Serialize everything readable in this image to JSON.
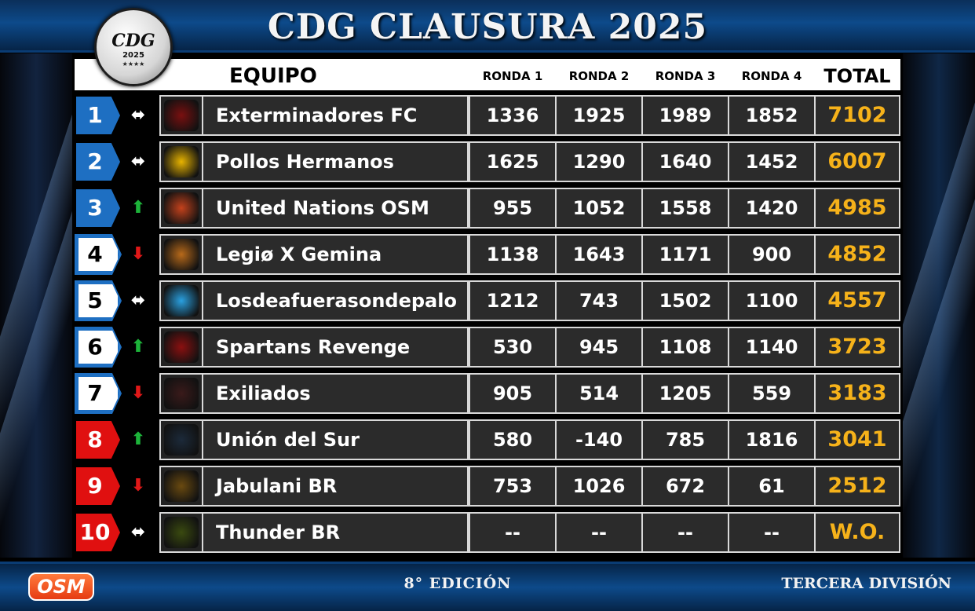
{
  "header": {
    "title": "CDG CLAUSURA 2025",
    "logo_text": "CDG",
    "logo_year": "2025",
    "logo_stars": "★★★★"
  },
  "columns": {
    "team": "EQUIPO",
    "r1": "RONDA 1",
    "r2": "RONDA 2",
    "r3": "RONDA 3",
    "r4": "RONDA 4",
    "total": "TOTAL"
  },
  "rows": [
    {
      "pos": "1",
      "trend": "same",
      "team": "Exterminadores FC",
      "r1": "1336",
      "r2": "1925",
      "r3": "1989",
      "r4": "1852",
      "total": "7102"
    },
    {
      "pos": "2",
      "trend": "same",
      "team": "Pollos Hermanos",
      "r1": "1625",
      "r2": "1290",
      "r3": "1640",
      "r4": "1452",
      "total": "6007"
    },
    {
      "pos": "3",
      "trend": "up",
      "team": "United Nations OSM",
      "r1": "955",
      "r2": "1052",
      "r3": "1558",
      "r4": "1420",
      "total": "4985"
    },
    {
      "pos": "4",
      "trend": "down",
      "team": "Legiø X Gemina",
      "r1": "1138",
      "r2": "1643",
      "r3": "1171",
      "r4": "900",
      "total": "4852"
    },
    {
      "pos": "5",
      "trend": "same",
      "team": "Losdeafuerasondepalo",
      "r1": "1212",
      "r2": "743",
      "r3": "1502",
      "r4": "1100",
      "total": "4557"
    },
    {
      "pos": "6",
      "trend": "up",
      "team": "Spartans Revenge",
      "r1": "530",
      "r2": "945",
      "r3": "1108",
      "r4": "1140",
      "total": "3723"
    },
    {
      "pos": "7",
      "trend": "down",
      "team": "Exiliados",
      "r1": "905",
      "r2": "514",
      "r3": "1205",
      "r4": "559",
      "total": "3183"
    },
    {
      "pos": "8",
      "trend": "up",
      "team": "Unión del Sur",
      "r1": "580",
      "r2": "-140",
      "r3": "785",
      "r4": "1816",
      "total": "3041"
    },
    {
      "pos": "9",
      "trend": "down",
      "team": "Jabulani BR",
      "r1": "753",
      "r2": "1026",
      "r3": "672",
      "r4": "61",
      "total": "2512"
    },
    {
      "pos": "10",
      "trend": "same",
      "team": "Thunder BR",
      "r1": "--",
      "r2": "--",
      "r3": "--",
      "r4": "--",
      "total": "W.O."
    }
  ],
  "trend_symbols": {
    "same": "⬌",
    "up": "⬆",
    "down": "⬇"
  },
  "footer": {
    "brand": "OSM",
    "edition": "8° EDICIÓN",
    "division": "TERCERA DIVISIÓN"
  },
  "colors": {
    "accent_blue": "#1e6fc2",
    "relegation_red": "#e01010",
    "total_gold": "#f6b21a",
    "up_green": "#1db43a",
    "down_red": "#e01818"
  }
}
